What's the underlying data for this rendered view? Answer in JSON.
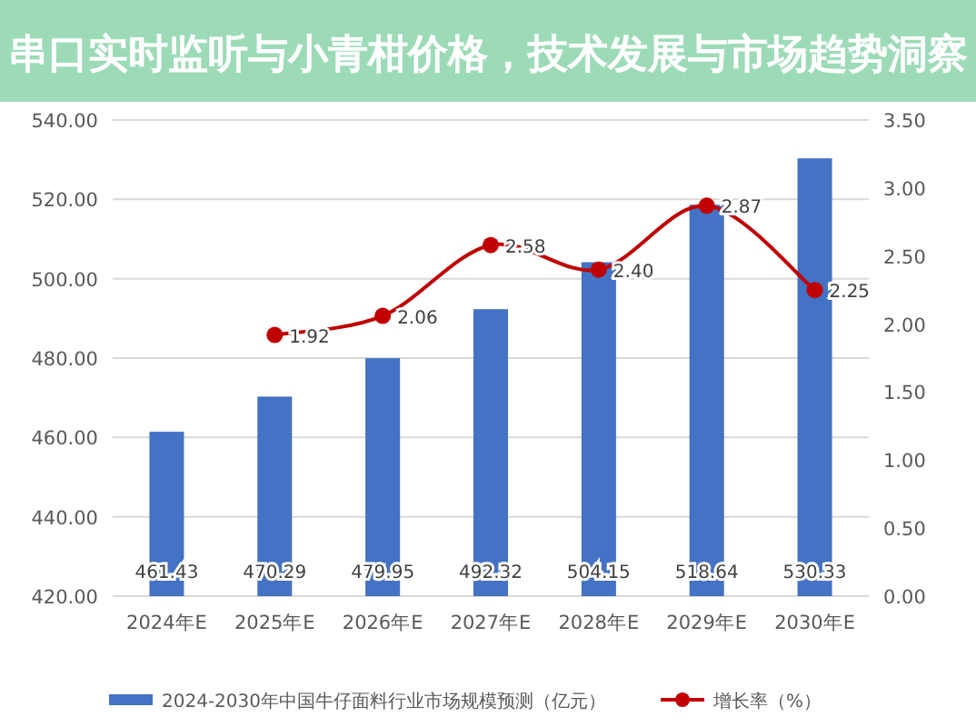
{
  "chart_data": {
    "type": "bar",
    "title": "串口实时监听与小青柑价格，技术发展与市场趋势洞察",
    "categories": [
      "2024年E",
      "2025年E",
      "2026年E",
      "2027年E",
      "2028年E",
      "2029年E",
      "2030年E"
    ],
    "series": [
      {
        "name": "2024-2030年中国牛仔面料行业市场规模预测（亿元）",
        "color": "#4472c4",
        "values": [
          461.43,
          470.29,
          479.95,
          492.32,
          504.15,
          518.64,
          530.33
        ],
        "value_labels": [
          "461.43",
          "470.29",
          "479.95",
          "492.32",
          "504.15",
          "518.64",
          "530.33"
        ]
      },
      {
        "name": "增长率（%）",
        "type": "line",
        "axis": "y2",
        "color": "#c00000",
        "marker": "circle",
        "values": [
          null,
          1.92,
          2.06,
          2.58,
          2.4,
          2.87,
          2.25
        ],
        "value_labels": [
          null,
          "1.92",
          "2.06",
          "2.58",
          "2.40",
          "2.87",
          "2.25"
        ]
      }
    ],
    "ylim": [
      420,
      540
    ],
    "yticks": [
      {
        "value": 420,
        "label": "420.00"
      },
      {
        "value": 440,
        "label": "440.00"
      },
      {
        "value": 460,
        "label": "460.00"
      },
      {
        "value": 480,
        "label": "480.00"
      },
      {
        "value": 500,
        "label": "500.00"
      },
      {
        "value": 520,
        "label": "520.00"
      },
      {
        "value": 540,
        "label": "540.00"
      }
    ],
    "y2lim": [
      0,
      3.5
    ],
    "y2ticks": [
      {
        "value": 0,
        "label": "0.00"
      },
      {
        "value": 0.5,
        "label": "0.50"
      },
      {
        "value": 1,
        "label": "1.00"
      },
      {
        "value": 1.5,
        "label": "1.50"
      },
      {
        "value": 2,
        "label": "2.00"
      },
      {
        "value": 2.5,
        "label": "2.50"
      },
      {
        "value": 3,
        "label": "3.00"
      },
      {
        "value": 3.5,
        "label": "3.50"
      }
    ],
    "grid": "y",
    "legend": "bottom"
  }
}
